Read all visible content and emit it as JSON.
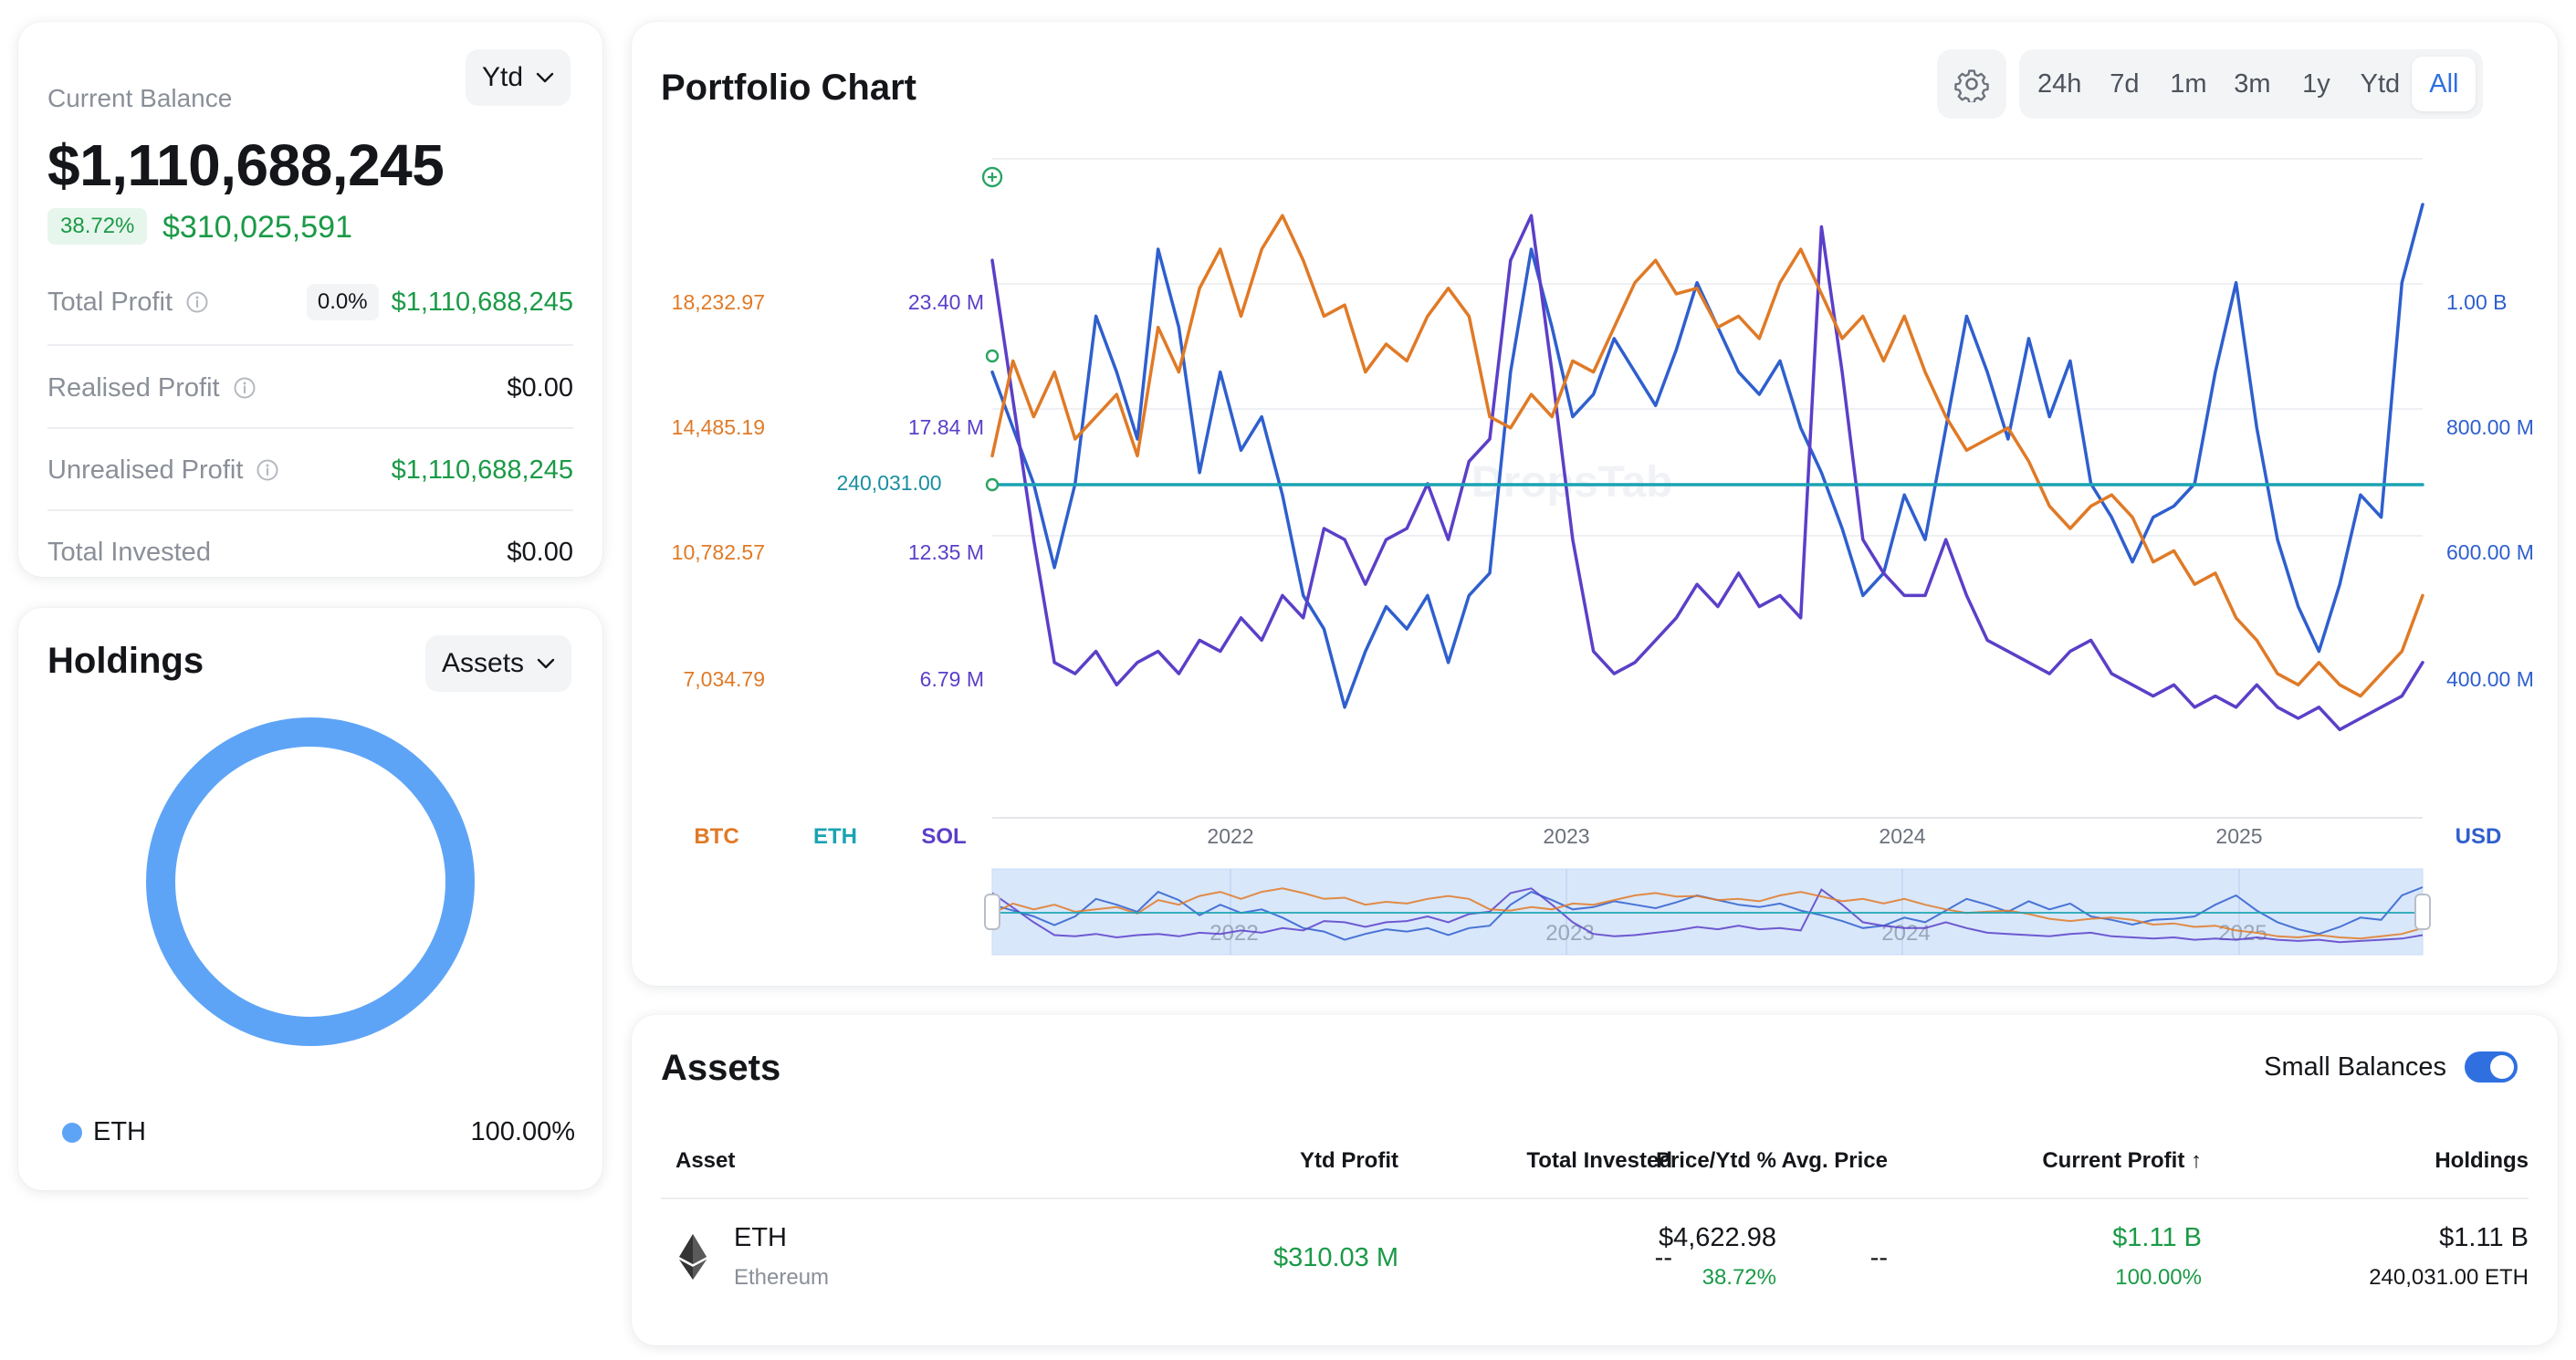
{
  "balance": {
    "label": "Current Balance",
    "period": "Ytd",
    "value": "$1,110,688,245",
    "change_pct": "38.72%",
    "change_value": "$310,025,591",
    "rows": [
      {
        "label": "Total Profit",
        "badge": "0.0%",
        "value": "$1,110,688,245",
        "color": "#1a9a46"
      },
      {
        "label": "Realised Profit",
        "value": "$0.00",
        "color": "#14161a"
      },
      {
        "label": "Unrealised Profit",
        "value": "$1,110,688,245",
        "color": "#1a9a46"
      },
      {
        "label": "Total Invested",
        "value": "$0.00",
        "color": "#14161a"
      }
    ]
  },
  "holdings": {
    "title": "Holdings",
    "dropdown": "Assets",
    "legend": [
      {
        "name": "ETH",
        "pct": "100.00%",
        "color": "#5ea4f6"
      }
    ]
  },
  "chart": {
    "title": "Portfolio Chart",
    "ranges": [
      "24h",
      "7d",
      "1m",
      "3m",
      "1y",
      "Ytd",
      "All"
    ],
    "active_range": "All",
    "watermark": "DropsTab"
  },
  "chart_data": {
    "type": "line",
    "x_ticks": [
      "2022",
      "2023",
      "2024",
      "2025"
    ],
    "axes": {
      "BTC": {
        "ticks": [
          "18,232.97",
          "14,485.19",
          "10,782.57",
          "7,034.79"
        ],
        "color": "#e07a26"
      },
      "SOL": {
        "ticks": [
          "23.40 M",
          "17.84 M",
          "12.35 M",
          "6.79 M"
        ],
        "color": "#5b3fc8"
      },
      "USD": {
        "ticks": [
          "1.00 B",
          "800.00 M",
          "600.00 M",
          "400.00 M"
        ],
        "color": "#2f5fce"
      }
    },
    "eth_marker": "240,031.00",
    "legend": [
      {
        "name": "BTC",
        "color": "#e07a26"
      },
      {
        "name": "ETH",
        "color": "#1aa3b3"
      },
      {
        "name": "SOL",
        "color": "#5b3fc8"
      },
      {
        "name": "USD",
        "color": "#2f5fce"
      }
    ],
    "series": [
      {
        "name": "BTC",
        "color": "#e07a26",
        "values": [
          0.55,
          0.72,
          0.62,
          0.7,
          0.58,
          0.62,
          0.66,
          0.55,
          0.78,
          0.7,
          0.85,
          0.92,
          0.8,
          0.92,
          0.98,
          0.9,
          0.8,
          0.82,
          0.7,
          0.75,
          0.72,
          0.8,
          0.85,
          0.8,
          0.62,
          0.6,
          0.66,
          0.62,
          0.72,
          0.7,
          0.78,
          0.86,
          0.9,
          0.84,
          0.85,
          0.78,
          0.8,
          0.76,
          0.86,
          0.92,
          0.84,
          0.76,
          0.8,
          0.72,
          0.8,
          0.7,
          0.62,
          0.56,
          0.58,
          0.6,
          0.54,
          0.46,
          0.42,
          0.46,
          0.48,
          0.44,
          0.36,
          0.38,
          0.32,
          0.34,
          0.26,
          0.22,
          0.16,
          0.14,
          0.18,
          0.14,
          0.12,
          0.16,
          0.2,
          0.3
        ]
      },
      {
        "name": "ETH",
        "color": "#1aa3b3",
        "values": [
          0.62,
          0.62,
          0.62,
          0.62,
          0.62,
          0.62,
          0.62,
          0.62,
          0.62,
          0.62,
          0.62,
          0.62,
          0.62,
          0.62,
          0.62,
          0.62,
          0.62,
          0.62,
          0.62,
          0.62,
          0.62,
          0.62,
          0.62,
          0.62,
          0.62,
          0.62,
          0.62,
          0.62,
          0.62,
          0.62,
          0.62,
          0.62,
          0.62,
          0.62,
          0.62,
          0.62,
          0.62,
          0.62,
          0.62,
          0.62,
          0.62,
          0.62,
          0.62,
          0.62,
          0.62,
          0.62,
          0.62,
          0.62,
          0.62,
          0.62,
          0.62,
          0.62,
          0.62,
          0.62,
          0.62,
          0.62,
          0.62,
          0.62,
          0.62,
          0.62,
          0.62,
          0.62,
          0.62,
          0.62,
          0.62,
          0.62,
          0.62,
          0.62,
          0.62,
          0.62
        ]
      },
      {
        "name": "SOL",
        "color": "#5b3fc8",
        "values": [
          0.9,
          0.65,
          0.4,
          0.18,
          0.16,
          0.2,
          0.14,
          0.18,
          0.2,
          0.16,
          0.22,
          0.2,
          0.26,
          0.22,
          0.3,
          0.26,
          0.42,
          0.4,
          0.32,
          0.4,
          0.42,
          0.5,
          0.4,
          0.54,
          0.58,
          0.9,
          0.98,
          0.7,
          0.4,
          0.2,
          0.16,
          0.18,
          0.22,
          0.26,
          0.32,
          0.28,
          0.34,
          0.28,
          0.3,
          0.26,
          0.96,
          0.7,
          0.4,
          0.34,
          0.3,
          0.3,
          0.4,
          0.3,
          0.22,
          0.2,
          0.18,
          0.16,
          0.2,
          0.22,
          0.16,
          0.14,
          0.12,
          0.14,
          0.1,
          0.12,
          0.1,
          0.14,
          0.1,
          0.08,
          0.1,
          0.06,
          0.08,
          0.1,
          0.12,
          0.18
        ]
      },
      {
        "name": "USD",
        "color": "#2f5fce",
        "values": [
          0.7,
          0.6,
          0.5,
          0.35,
          0.5,
          0.8,
          0.7,
          0.58,
          0.92,
          0.78,
          0.52,
          0.7,
          0.56,
          0.62,
          0.48,
          0.3,
          0.24,
          0.1,
          0.2,
          0.28,
          0.24,
          0.3,
          0.18,
          0.3,
          0.34,
          0.7,
          0.92,
          0.78,
          0.62,
          0.66,
          0.76,
          0.7,
          0.64,
          0.74,
          0.86,
          0.78,
          0.7,
          0.66,
          0.72,
          0.6,
          0.52,
          0.42,
          0.3,
          0.34,
          0.48,
          0.4,
          0.6,
          0.8,
          0.7,
          0.58,
          0.76,
          0.62,
          0.72,
          0.5,
          0.44,
          0.36,
          0.44,
          0.46,
          0.5,
          0.7,
          0.86,
          0.6,
          0.4,
          0.28,
          0.2,
          0.32,
          0.48,
          0.44,
          0.86,
          1.0
        ]
      }
    ]
  },
  "assets": {
    "title": "Assets",
    "toggle_label": "Small Balances",
    "headers": [
      "Asset",
      "Price/Ytd %",
      "Ytd Profit",
      "Total Invested",
      "Avg. Price",
      "Current Profit ↑",
      "Holdings"
    ],
    "rows": [
      {
        "symbol": "ETH",
        "name": "Ethereum",
        "price": "$4,622.98",
        "ytd_pct": "38.72%",
        "ytd_profit": "$310.03 M",
        "total_invested": "--",
        "avg_price": "--",
        "current_profit": "$1.11 B",
        "current_profit_pct": "100.00%",
        "holdings_value": "$1.11 B",
        "holdings_amount": "240,031.00 ETH"
      }
    ]
  }
}
